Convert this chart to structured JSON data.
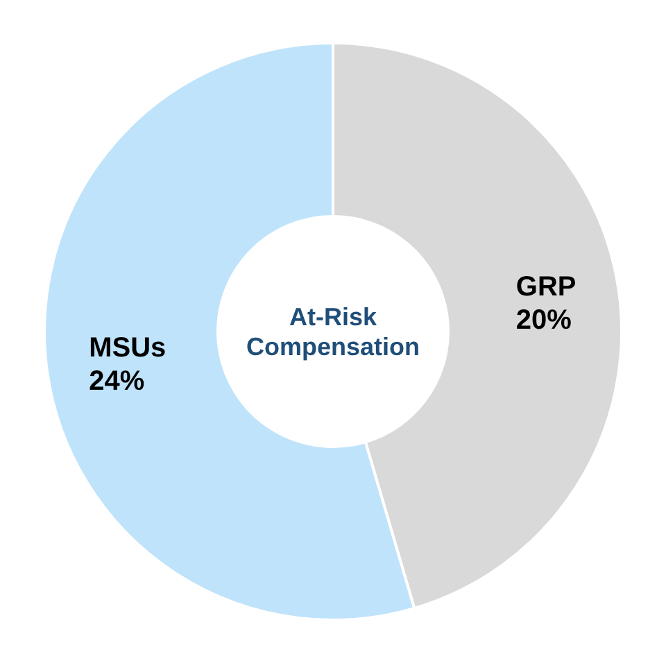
{
  "chart_data": {
    "type": "donut",
    "title": "At-Risk Compensation",
    "categories": [
      "GRP",
      "MSUs"
    ],
    "values": [
      20,
      24
    ],
    "value_labels": [
      "20%",
      "24%"
    ],
    "colors": [
      "#d9d9d9",
      "#bfe3fb"
    ]
  }
}
